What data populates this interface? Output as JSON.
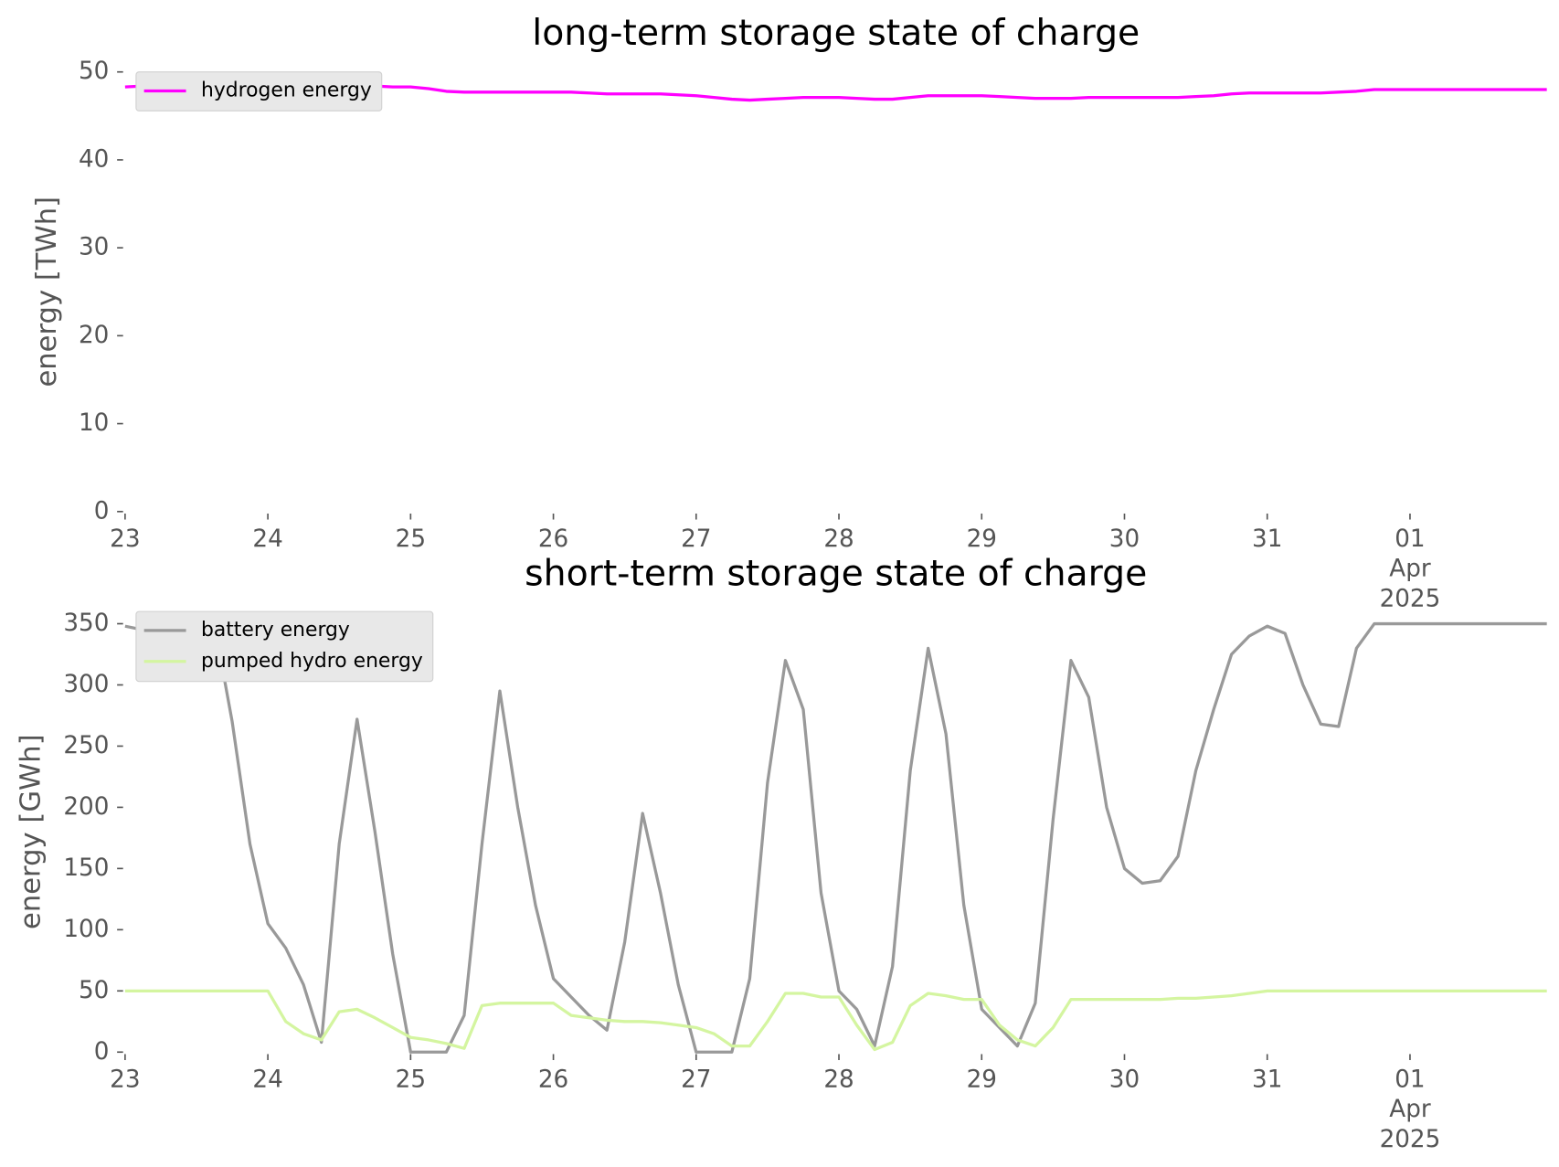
{
  "chart_data": [
    {
      "type": "line",
      "title": "long-term storage state of charge",
      "ylabel": "energy [TWh]",
      "legend": "upper left",
      "grid": false,
      "x": [
        "2025-03-23T00:00",
        "2025-03-23T03:00",
        "2025-03-23T06:00",
        "2025-03-23T09:00",
        "2025-03-23T12:00",
        "2025-03-23T15:00",
        "2025-03-23T18:00",
        "2025-03-23T21:00",
        "2025-03-24T00:00",
        "2025-03-24T03:00",
        "2025-03-24T06:00",
        "2025-03-24T09:00",
        "2025-03-24T12:00",
        "2025-03-24T15:00",
        "2025-03-24T18:00",
        "2025-03-24T21:00",
        "2025-03-25T00:00",
        "2025-03-25T03:00",
        "2025-03-25T06:00",
        "2025-03-25T09:00",
        "2025-03-25T12:00",
        "2025-03-25T15:00",
        "2025-03-25T18:00",
        "2025-03-25T21:00",
        "2025-03-26T00:00",
        "2025-03-26T03:00",
        "2025-03-26T06:00",
        "2025-03-26T09:00",
        "2025-03-26T12:00",
        "2025-03-26T15:00",
        "2025-03-26T18:00",
        "2025-03-26T21:00",
        "2025-03-27T00:00",
        "2025-03-27T03:00",
        "2025-03-27T06:00",
        "2025-03-27T09:00",
        "2025-03-27T12:00",
        "2025-03-27T15:00",
        "2025-03-27T18:00",
        "2025-03-27T21:00",
        "2025-03-28T00:00",
        "2025-03-28T03:00",
        "2025-03-28T06:00",
        "2025-03-28T09:00",
        "2025-03-28T12:00",
        "2025-03-28T15:00",
        "2025-03-28T18:00",
        "2025-03-28T21:00",
        "2025-03-29T00:00",
        "2025-03-29T03:00",
        "2025-03-29T06:00",
        "2025-03-29T09:00",
        "2025-03-29T12:00",
        "2025-03-29T15:00",
        "2025-03-29T18:00",
        "2025-03-29T21:00",
        "2025-03-30T00:00",
        "2025-03-30T03:00",
        "2025-03-30T06:00",
        "2025-03-30T09:00",
        "2025-03-30T12:00",
        "2025-03-30T15:00",
        "2025-03-30T18:00",
        "2025-03-30T21:00",
        "2025-03-31T00:00",
        "2025-03-31T03:00",
        "2025-03-31T06:00",
        "2025-03-31T09:00",
        "2025-03-31T12:00",
        "2025-03-31T15:00",
        "2025-03-31T18:00",
        "2025-04-01T00:00",
        "2025-04-01T12:00",
        "2025-04-01T23:00"
      ],
      "series": [
        {
          "name": "hydrogen energy",
          "color": "#ff00ff",
          "values": [
            48.3,
            48.4,
            48.6,
            48.7,
            48.8,
            48.8,
            48.8,
            48.8,
            48.8,
            48.7,
            48.6,
            48.5,
            48.5,
            48.4,
            48.4,
            48.3,
            48.3,
            48.1,
            47.8,
            47.7,
            47.7,
            47.7,
            47.7,
            47.7,
            47.7,
            47.7,
            47.6,
            47.5,
            47.5,
            47.5,
            47.5,
            47.4,
            47.3,
            47.1,
            46.9,
            46.8,
            46.9,
            47.0,
            47.1,
            47.1,
            47.1,
            47.0,
            46.9,
            46.9,
            47.1,
            47.3,
            47.3,
            47.3,
            47.3,
            47.2,
            47.1,
            47.0,
            47.0,
            47.0,
            47.1,
            47.1,
            47.1,
            47.1,
            47.1,
            47.1,
            47.2,
            47.3,
            47.5,
            47.6,
            47.6,
            47.6,
            47.6,
            47.6,
            47.7,
            47.8,
            48.0,
            48.0,
            48.0,
            48.0
          ]
        }
      ],
      "xlim": [
        "2025-03-23T00:00",
        "2025-04-01T23:00"
      ],
      "xticks": [
        {
          "value": "2025-03-23T00:00",
          "label": "23"
        },
        {
          "value": "2025-03-24T00:00",
          "label": "24"
        },
        {
          "value": "2025-03-25T00:00",
          "label": "25"
        },
        {
          "value": "2025-03-26T00:00",
          "label": "26"
        },
        {
          "value": "2025-03-27T00:00",
          "label": "27"
        },
        {
          "value": "2025-03-28T00:00",
          "label": "28"
        },
        {
          "value": "2025-03-29T00:00",
          "label": "29"
        },
        {
          "value": "2025-03-30T00:00",
          "label": "30"
        },
        {
          "value": "2025-03-31T00:00",
          "label": "31"
        },
        {
          "value": "2025-04-01T00:00",
          "label": [
            "01",
            "Apr",
            "2025"
          ]
        }
      ],
      "ylim": [
        0,
        50
      ],
      "yticks": [
        0,
        10,
        20,
        30,
        40,
        50
      ]
    },
    {
      "type": "line",
      "title": "short-term storage state of charge",
      "ylabel": "energy [GWh]",
      "legend": "upper left",
      "grid": false,
      "x": [
        "2025-03-23T00:00",
        "2025-03-23T03:00",
        "2025-03-23T06:00",
        "2025-03-23T09:00",
        "2025-03-23T12:00",
        "2025-03-23T15:00",
        "2025-03-23T18:00",
        "2025-03-23T21:00",
        "2025-03-24T00:00",
        "2025-03-24T03:00",
        "2025-03-24T06:00",
        "2025-03-24T09:00",
        "2025-03-24T12:00",
        "2025-03-24T15:00",
        "2025-03-24T18:00",
        "2025-03-24T21:00",
        "2025-03-25T00:00",
        "2025-03-25T03:00",
        "2025-03-25T06:00",
        "2025-03-25T09:00",
        "2025-03-25T12:00",
        "2025-03-25T15:00",
        "2025-03-25T18:00",
        "2025-03-25T21:00",
        "2025-03-26T00:00",
        "2025-03-26T03:00",
        "2025-03-26T06:00",
        "2025-03-26T09:00",
        "2025-03-26T12:00",
        "2025-03-26T15:00",
        "2025-03-26T18:00",
        "2025-03-26T21:00",
        "2025-03-27T00:00",
        "2025-03-27T03:00",
        "2025-03-27T06:00",
        "2025-03-27T09:00",
        "2025-03-27T12:00",
        "2025-03-27T15:00",
        "2025-03-27T18:00",
        "2025-03-27T21:00",
        "2025-03-28T00:00",
        "2025-03-28T03:00",
        "2025-03-28T06:00",
        "2025-03-28T09:00",
        "2025-03-28T12:00",
        "2025-03-28T15:00",
        "2025-03-28T18:00",
        "2025-03-28T21:00",
        "2025-03-29T00:00",
        "2025-03-29T03:00",
        "2025-03-29T06:00",
        "2025-03-29T09:00",
        "2025-03-29T12:00",
        "2025-03-29T15:00",
        "2025-03-29T18:00",
        "2025-03-29T21:00",
        "2025-03-30T00:00",
        "2025-03-30T03:00",
        "2025-03-30T06:00",
        "2025-03-30T09:00",
        "2025-03-30T12:00",
        "2025-03-30T15:00",
        "2025-03-30T18:00",
        "2025-03-30T21:00",
        "2025-03-31T00:00",
        "2025-03-31T03:00",
        "2025-03-31T06:00",
        "2025-03-31T09:00",
        "2025-03-31T12:00",
        "2025-03-31T15:00",
        "2025-03-31T18:00",
        "2025-04-01T00:00",
        "2025-04-01T12:00",
        "2025-04-01T23:00"
      ],
      "series": [
        {
          "name": "battery energy",
          "color": "#999999",
          "values": [
            348,
            345,
            345,
            345,
            350,
            350,
            270,
            170,
            105,
            85,
            55,
            8,
            170,
            272,
            180,
            80,
            0,
            0,
            0,
            30,
            170,
            295,
            200,
            120,
            60,
            45,
            30,
            18,
            90,
            195,
            130,
            55,
            0,
            0,
            0,
            60,
            220,
            320,
            280,
            130,
            50,
            35,
            5,
            70,
            230,
            330,
            260,
            120,
            35,
            20,
            5,
            40,
            190,
            320,
            290,
            200,
            150,
            138,
            140,
            160,
            230,
            280,
            325,
            340,
            348,
            342,
            300,
            268,
            266,
            330,
            350,
            350,
            350,
            350
          ]
        },
        {
          "name": "pumped hydro energy",
          "color": "#d4f5a0",
          "values": [
            50,
            50,
            50,
            50,
            50,
            50,
            50,
            50,
            50,
            25,
            15,
            10,
            33,
            35,
            28,
            20,
            12,
            10,
            7,
            3,
            38,
            40,
            40,
            40,
            40,
            30,
            28,
            26,
            25,
            25,
            24,
            22,
            20,
            15,
            5,
            5,
            25,
            48,
            48,
            45,
            45,
            22,
            2,
            8,
            38,
            48,
            46,
            43,
            43,
            22,
            10,
            5,
            20,
            43,
            43,
            43,
            43,
            43,
            43,
            44,
            44,
            45,
            46,
            48,
            50,
            50,
            50,
            50,
            50,
            50,
            50,
            50,
            50,
            50
          ]
        }
      ],
      "xlim": [
        "2025-03-23T00:00",
        "2025-04-01T23:00"
      ],
      "xticks": [
        {
          "value": "2025-03-23T00:00",
          "label": "23"
        },
        {
          "value": "2025-03-24T00:00",
          "label": "24"
        },
        {
          "value": "2025-03-25T00:00",
          "label": "25"
        },
        {
          "value": "2025-03-26T00:00",
          "label": "26"
        },
        {
          "value": "2025-03-27T00:00",
          "label": "27"
        },
        {
          "value": "2025-03-28T00:00",
          "label": "28"
        },
        {
          "value": "2025-03-29T00:00",
          "label": "29"
        },
        {
          "value": "2025-03-30T00:00",
          "label": "30"
        },
        {
          "value": "2025-03-31T00:00",
          "label": "31"
        },
        {
          "value": "2025-04-01T00:00",
          "label": [
            "01",
            "Apr",
            "2025"
          ]
        }
      ],
      "ylim": [
        0,
        360
      ],
      "yticks": [
        0,
        50,
        100,
        150,
        200,
        250,
        300,
        350
      ]
    }
  ]
}
